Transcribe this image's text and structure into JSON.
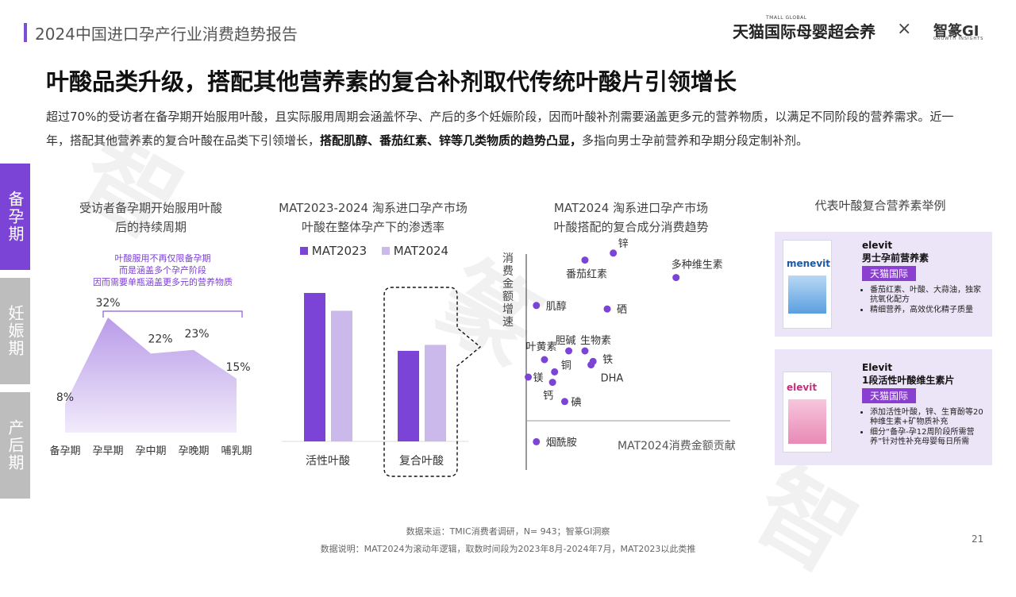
{
  "header": {
    "report_title": "2024中国进口孕产行业消费趋势报告",
    "brand_tmall": "天猫国际母婴超会养",
    "brand_tmall_sub": "TMALL GLOBAL",
    "brand_sep": "×",
    "brand_gi": "智篆GI",
    "brand_gi_sub": "GROWTH INSIGHTS"
  },
  "headline": "叶酸品类升级，搭配其他营养素的复合补剂取代传统叶酸片引领增长",
  "paragraph": {
    "part1": "超过70%的受访者在备孕期开始服用叶酸，且实际服用周期会涵盖怀孕、产后的多个妊娠阶段，因而叶酸补剂需要涵盖更多元的营养物质，以满足不同阶段的营养需求。近一年，搭配其他营养素的复合叶酸在品类下引领增长，",
    "bold": "搭配肌醇、番茄红素、锌等几类物质的趋势凸显，",
    "part2": "多指向男士孕前营养和孕期分段定制补剂。"
  },
  "tabs": [
    {
      "label": "备孕期",
      "color": "#7b44d6"
    },
    {
      "label": "妊娠期",
      "color": "#bdbdbd"
    },
    {
      "label": "产后期",
      "color": "#bdbdbd"
    }
  ],
  "area_section": {
    "title_line1": "受访者备孕期开始服用叶酸",
    "title_line2": "后的持续周期",
    "note_line1": "叶酸服用不再仅限备孕期",
    "note_line2": "而是涵盖多个孕产阶段",
    "note_line3": "因而需要单瓶涵盖更多元的营养物质"
  },
  "bar_section": {
    "title_line1": "MAT2023-2024 淘系进口孕产市场",
    "title_line2": "叶酸在整体孕产下的渗透率"
  },
  "scatter_section": {
    "title_line1": "MAT2024 淘系进口孕产市场",
    "title_line2": "叶酸搭配的复合成分消费趋势",
    "y_axis_label": "消费金额增速",
    "x_axis_label": "MAT2024消费金额贡献"
  },
  "cards_section": {
    "title": "代表叶酸复合营养素举例",
    "cards": [
      {
        "brand": "elevit",
        "name": "男士孕前营养素",
        "tag": "天猫国际",
        "package_word": "menevit",
        "items": [
          "番茄红素、叶酸、大蒜油，独家抗氧化配方",
          "精细营养，高效优化精子质量"
        ]
      },
      {
        "brand": "Elevit",
        "name": "1段活性叶酸维生素片",
        "tag": "天猫国际",
        "package_word": "elevit",
        "items": [
          "添加活性叶酸，锌、生育酚等20种维生素+矿物质补充",
          "细分“备孕-孕12周阶段所需营养”针对性补充母婴每日所需"
        ]
      }
    ]
  },
  "chart_data": [
    {
      "type": "area",
      "categories": [
        "备孕期",
        "孕早期",
        "孕中期",
        "孕晚期",
        "哺乳期"
      ],
      "values": [
        8,
        32,
        22,
        23,
        15
      ],
      "value_labels": [
        "8%",
        "32%",
        "22%",
        "23%",
        "15%"
      ],
      "color": "#b99be8"
    },
    {
      "type": "bar",
      "categories": [
        "活性叶酸",
        "复合叶酸"
      ],
      "series": [
        {
          "name": "MAT2023",
          "values": [
            100,
            61
          ],
          "color": "#7b44d6"
        },
        {
          "name": "MAT2024",
          "values": [
            88,
            65
          ],
          "color": "#cbb9ec"
        }
      ],
      "legend": "top"
    },
    {
      "type": "scatter",
      "xlabel": "MAT2024消费金额贡献",
      "ylabel": "消费金额增速",
      "color": "#7b44d6",
      "points": [
        {
          "name": "锌",
          "x": 43,
          "y": 96
        },
        {
          "name": "番茄红素",
          "x": 29,
          "y": 92
        },
        {
          "name": "多种维生素",
          "x": 74,
          "y": 82
        },
        {
          "name": "肌醇",
          "x": 5,
          "y": 66
        },
        {
          "name": "硒",
          "x": 40,
          "y": 64
        },
        {
          "name": "胆碱",
          "x": 21,
          "y": 40
        },
        {
          "name": "生物素",
          "x": 29,
          "y": 40
        },
        {
          "name": "叶黄素",
          "x": 9,
          "y": 35
        },
        {
          "name": "铁",
          "x": 33,
          "y": 34
        },
        {
          "name": "DHA",
          "x": 32,
          "y": 32
        },
        {
          "name": "铜",
          "x": 14,
          "y": 28
        },
        {
          "name": "镁",
          "x": 1,
          "y": 25
        },
        {
          "name": "钙",
          "x": 13,
          "y": 22
        },
        {
          "name": "碘",
          "x": 19,
          "y": 11
        },
        {
          "name": "烟酰胺",
          "x": 5,
          "y": -12
        }
      ]
    }
  ],
  "footer": {
    "source": "数据来运：TMIC消费者调研，N= 943；智篆GI洞察",
    "note": "数据说明：MAT2024为滚动年逻辑，取数时间段为2023年8月-2024年7月，MAT2023以此类推",
    "page": "21"
  }
}
